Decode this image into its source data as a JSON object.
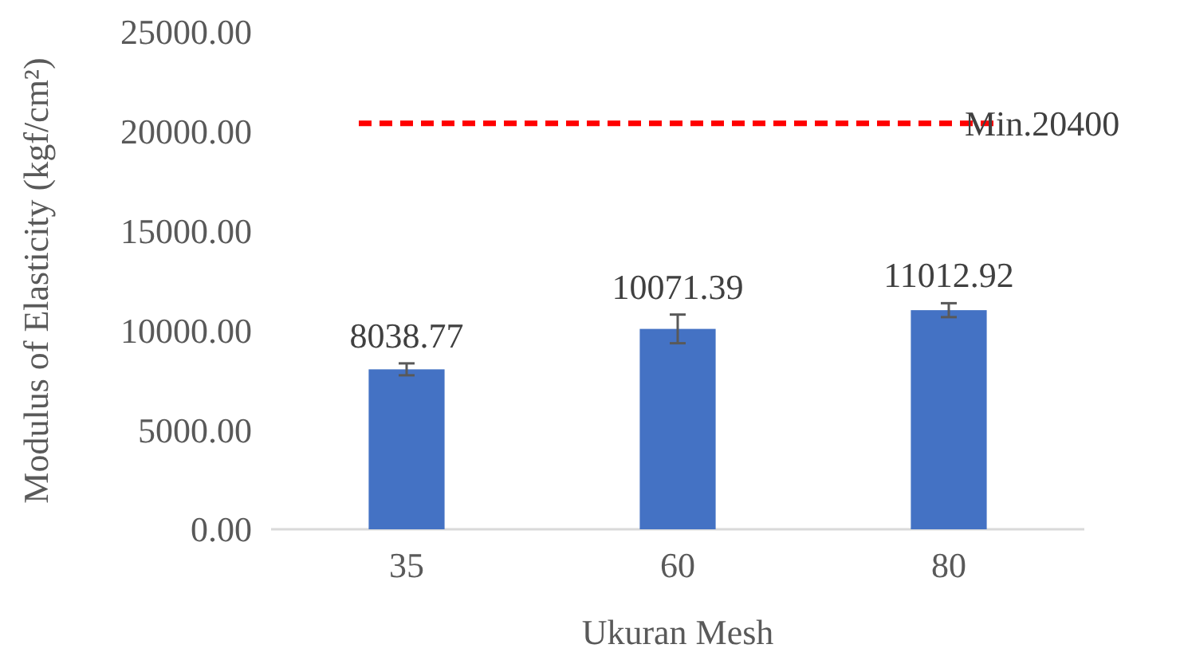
{
  "chart_data": {
    "type": "bar",
    "xlabel": "Ukuran Mesh",
    "ylabel": "Modulus of Elasticity (kgf/cm²)",
    "categories": [
      "35",
      "60",
      "80"
    ],
    "values": [
      8038.77,
      10071.39,
      11012.92
    ],
    "errors": [
      300,
      720,
      350
    ],
    "color": "#4472c4",
    "data_labels": true,
    "ylim": [
      0,
      25000
    ],
    "yticks": [
      {
        "value": 0,
        "label": "0.00"
      },
      {
        "value": 5000,
        "label": "5000.00"
      },
      {
        "value": 10000,
        "label": "10000.00"
      },
      {
        "value": 15000,
        "label": "15000.00"
      },
      {
        "value": 20000,
        "label": "20000.00"
      },
      {
        "value": 25000,
        "label": "25000.00"
      }
    ],
    "ref_lines": [
      {
        "axis": "y",
        "value": 20400,
        "label": "Min.20400",
        "color": "#ff0000",
        "line_style": "dashed"
      }
    ],
    "grid": false
  }
}
